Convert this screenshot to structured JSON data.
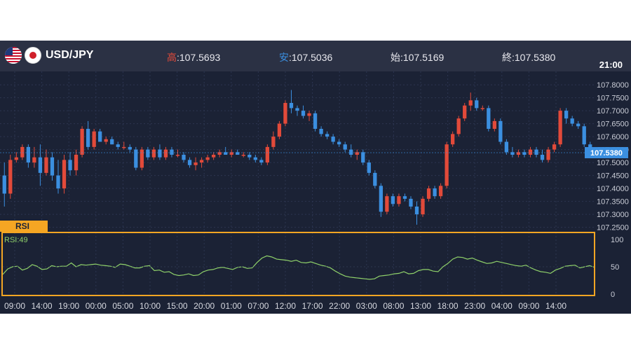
{
  "header": {
    "pair": "USD/JPY",
    "high_label": "高",
    "high_value": ":107.5693",
    "low_label": "安",
    "low_value": ":107.5036",
    "open_label": "始",
    "open_value": ":107.5169",
    "close_label": "終",
    "close_value": ":107.5380",
    "time": "21:00"
  },
  "colors": {
    "background": "#1b2235",
    "header": "#2b3144",
    "up_candle": "#e24a3a",
    "down_candle": "#3b8fe0",
    "rsi_line": "#8fd16a",
    "rsi_frame": "#f5a623",
    "price_tag": "#3b8fe0"
  },
  "rsi": {
    "tab_label": "RSI",
    "value_label": "RSI:49"
  },
  "chart_data": [
    {
      "type": "candlestick",
      "ylim": [
        107.23,
        107.83
      ],
      "y_ticks": [
        "107.8000",
        "107.7500",
        "107.7000",
        "107.6500",
        "107.6000",
        "107.5500",
        "107.5000",
        "107.4500",
        "107.4000",
        "107.3500",
        "107.3000",
        "107.2500"
      ],
      "x_ticks": [
        "09:00",
        "14:00",
        "19:00",
        "00:00",
        "05:00",
        "10:00",
        "15:00",
        "20:00",
        "01:00",
        "07:00",
        "12:00",
        "17:00",
        "22:00",
        "03:00",
        "08:00",
        "13:00",
        "18:00",
        "23:00",
        "04:00",
        "09:00",
        "14:00"
      ],
      "current_price": "107.5380",
      "candles": [
        [
          107.45,
          107.5,
          107.33,
          107.38
        ],
        [
          107.38,
          107.53,
          107.36,
          107.51
        ],
        [
          107.51,
          107.54,
          107.5,
          107.52
        ],
        [
          107.52,
          107.57,
          107.51,
          107.56
        ],
        [
          107.56,
          107.57,
          107.48,
          107.5
        ],
        [
          107.5,
          107.56,
          107.48,
          107.52
        ],
        [
          107.52,
          107.57,
          107.41,
          107.46
        ],
        [
          107.46,
          107.55,
          107.45,
          107.52
        ],
        [
          107.52,
          107.54,
          107.43,
          107.45
        ],
        [
          107.45,
          107.51,
          107.38,
          107.4
        ],
        [
          107.4,
          107.53,
          107.38,
          107.51
        ],
        [
          107.51,
          107.54,
          107.45,
          107.47
        ],
        [
          107.47,
          107.55,
          107.45,
          107.53
        ],
        [
          107.53,
          107.64,
          107.52,
          107.63
        ],
        [
          107.63,
          107.66,
          107.55,
          107.56
        ],
        [
          107.56,
          107.63,
          107.55,
          107.62
        ],
        [
          107.62,
          107.63,
          107.58,
          107.58
        ],
        [
          107.58,
          107.6,
          107.57,
          107.59
        ],
        [
          107.59,
          107.6,
          107.57,
          107.57
        ],
        [
          107.57,
          107.58,
          107.55,
          107.56
        ],
        [
          107.56,
          107.58,
          107.55,
          107.56
        ],
        [
          107.56,
          107.57,
          107.54,
          107.55
        ],
        [
          107.55,
          107.56,
          107.47,
          107.48
        ],
        [
          107.48,
          107.56,
          107.47,
          107.55
        ],
        [
          107.55,
          107.56,
          107.51,
          107.52
        ],
        [
          107.52,
          107.56,
          107.51,
          107.55
        ],
        [
          107.55,
          107.57,
          107.51,
          107.52
        ],
        [
          107.52,
          107.56,
          107.51,
          107.55
        ],
        [
          107.55,
          107.56,
          107.52,
          107.53
        ],
        [
          107.53,
          107.55,
          107.52,
          107.53
        ],
        [
          107.53,
          107.54,
          107.5,
          107.51
        ],
        [
          107.51,
          107.52,
          107.48,
          107.49
        ],
        [
          107.49,
          107.52,
          107.47,
          107.5
        ],
        [
          107.5,
          107.52,
          107.48,
          107.51
        ],
        [
          107.51,
          107.53,
          107.5,
          107.52
        ],
        [
          107.52,
          107.54,
          107.51,
          107.53
        ],
        [
          107.53,
          107.55,
          107.52,
          107.54
        ],
        [
          107.54,
          107.56,
          107.53,
          107.53
        ],
        [
          107.53,
          107.55,
          107.52,
          107.54
        ],
        [
          107.54,
          107.55,
          107.53,
          107.53
        ],
        [
          107.53,
          107.54,
          107.52,
          107.53
        ],
        [
          107.53,
          107.54,
          107.51,
          107.52
        ],
        [
          107.52,
          107.53,
          107.5,
          107.51
        ],
        [
          107.51,
          107.52,
          107.49,
          107.5
        ],
        [
          107.5,
          107.57,
          107.49,
          107.56
        ],
        [
          107.56,
          107.62,
          107.55,
          107.6
        ],
        [
          107.6,
          107.66,
          107.59,
          107.65
        ],
        [
          107.65,
          107.74,
          107.64,
          107.73
        ],
        [
          107.73,
          107.78,
          107.69,
          107.71
        ],
        [
          107.71,
          107.72,
          107.68,
          107.7
        ],
        [
          107.7,
          107.72,
          107.67,
          107.68
        ],
        [
          107.68,
          107.7,
          107.66,
          107.69
        ],
        [
          107.69,
          107.7,
          107.62,
          107.63
        ],
        [
          107.63,
          107.64,
          107.6,
          107.61
        ],
        [
          107.61,
          107.62,
          107.59,
          107.6
        ],
        [
          107.6,
          107.61,
          107.57,
          107.58
        ],
        [
          107.58,
          107.59,
          107.56,
          107.57
        ],
        [
          107.57,
          107.58,
          107.54,
          107.55
        ],
        [
          107.55,
          107.57,
          107.52,
          107.53
        ],
        [
          107.53,
          107.55,
          107.51,
          107.54
        ],
        [
          107.54,
          107.55,
          107.49,
          107.5
        ],
        [
          107.5,
          107.51,
          107.45,
          107.46
        ],
        [
          107.46,
          107.47,
          107.4,
          107.41
        ],
        [
          107.41,
          107.42,
          107.29,
          107.31
        ],
        [
          107.31,
          107.38,
          107.3,
          107.37
        ],
        [
          107.37,
          107.38,
          107.33,
          107.34
        ],
        [
          107.34,
          107.38,
          107.33,
          107.37
        ],
        [
          107.37,
          107.38,
          107.35,
          107.36
        ],
        [
          107.36,
          107.37,
          107.32,
          107.33
        ],
        [
          107.33,
          107.35,
          107.26,
          107.3
        ],
        [
          107.3,
          107.37,
          107.29,
          107.36
        ],
        [
          107.36,
          107.41,
          107.35,
          107.4
        ],
        [
          107.4,
          107.41,
          107.36,
          107.37
        ],
        [
          107.37,
          107.42,
          107.36,
          107.41
        ],
        [
          107.41,
          107.58,
          107.4,
          107.57
        ],
        [
          107.57,
          107.62,
          107.56,
          107.61
        ],
        [
          107.61,
          107.68,
          107.6,
          107.67
        ],
        [
          107.67,
          107.73,
          107.66,
          107.72
        ],
        [
          107.72,
          107.77,
          107.7,
          107.74
        ],
        [
          107.74,
          107.75,
          107.7,
          107.71
        ],
        [
          107.71,
          107.72,
          107.7,
          107.71
        ],
        [
          107.71,
          107.72,
          107.62,
          107.63
        ],
        [
          107.63,
          107.67,
          107.62,
          107.66
        ],
        [
          107.66,
          107.67,
          107.57,
          107.58
        ],
        [
          107.58,
          107.59,
          107.53,
          107.54
        ],
        [
          107.54,
          107.56,
          107.52,
          107.53
        ],
        [
          107.53,
          107.55,
          107.52,
          107.54
        ],
        [
          107.54,
          107.55,
          107.52,
          107.53
        ],
        [
          107.53,
          107.56,
          107.52,
          107.55
        ],
        [
          107.55,
          107.56,
          107.52,
          107.53
        ],
        [
          107.53,
          107.55,
          107.5,
          107.51
        ],
        [
          107.51,
          107.56,
          107.5,
          107.55
        ],
        [
          107.55,
          107.58,
          107.54,
          107.57
        ],
        [
          107.57,
          107.71,
          107.56,
          107.7
        ],
        [
          107.7,
          107.71,
          107.65,
          107.67
        ],
        [
          107.67,
          107.68,
          107.64,
          107.65
        ],
        [
          107.65,
          107.66,
          107.63,
          107.64
        ],
        [
          107.64,
          107.65,
          107.56,
          107.57
        ],
        [
          107.57,
          107.58,
          107.52,
          107.538
        ]
      ]
    },
    {
      "type": "line",
      "title": "RSI:49",
      "ylim": [
        0,
        100
      ],
      "y_ticks": [
        "100",
        "50",
        "0"
      ],
      "values": [
        36,
        46,
        50,
        51,
        44,
        47,
        54,
        51,
        45,
        46,
        52,
        50,
        51,
        51,
        57,
        50,
        54,
        53,
        54,
        55,
        53,
        52,
        51,
        49,
        55,
        54,
        51,
        48,
        48,
        51,
        52,
        43,
        44,
        40,
        41,
        36,
        34,
        35,
        37,
        34,
        35,
        41,
        44,
        45,
        48,
        49,
        47,
        45,
        49,
        50,
        47,
        48,
        58,
        66,
        70,
        68,
        64,
        63,
        62,
        60,
        62,
        58,
        57,
        59,
        56,
        53,
        51,
        48,
        42,
        37,
        33,
        31,
        30,
        29,
        28,
        27,
        28,
        33,
        34,
        35,
        37,
        38,
        41,
        37,
        38,
        43,
        45,
        45,
        42,
        41,
        50,
        56,
        64,
        68,
        67,
        64,
        66,
        62,
        59,
        56,
        57,
        60,
        58,
        56,
        54,
        52,
        51,
        53,
        48,
        44,
        41,
        40,
        38,
        44,
        47,
        51,
        52,
        53,
        48,
        50,
        52,
        49
      ]
    }
  ]
}
